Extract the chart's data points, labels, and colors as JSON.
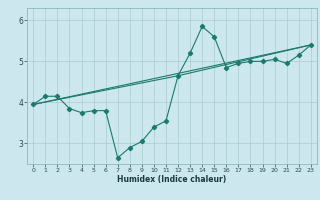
{
  "xlabel": "Humidex (Indice chaleur)",
  "background_color": "#cce8ee",
  "grid_color": "#aacccc",
  "line_color": "#1a7a6e",
  "xlim": [
    -0.5,
    23.5
  ],
  "ylim": [
    2.5,
    6.3
  ],
  "yticks": [
    3,
    4,
    5,
    6
  ],
  "xticks": [
    0,
    1,
    2,
    3,
    4,
    5,
    6,
    7,
    8,
    9,
    10,
    11,
    12,
    13,
    14,
    15,
    16,
    17,
    18,
    19,
    20,
    21,
    22,
    23
  ],
  "line1_x": [
    0,
    1,
    2,
    3,
    4,
    5,
    6,
    7,
    8,
    9,
    10,
    11,
    12,
    13,
    14,
    15,
    16,
    17,
    18,
    19,
    20,
    21,
    22,
    23
  ],
  "line1_y": [
    3.95,
    4.15,
    4.15,
    3.85,
    3.75,
    3.8,
    3.8,
    2.65,
    2.9,
    3.05,
    3.4,
    3.55,
    4.65,
    5.2,
    5.85,
    5.6,
    4.85,
    4.95,
    5.0,
    5.0,
    5.05,
    4.95,
    5.15,
    5.4
  ],
  "line3_x": [
    0,
    23
  ],
  "line3_y": [
    3.95,
    5.4
  ],
  "line4_x": [
    0,
    12,
    23
  ],
  "line4_y": [
    3.95,
    4.65,
    5.4
  ]
}
